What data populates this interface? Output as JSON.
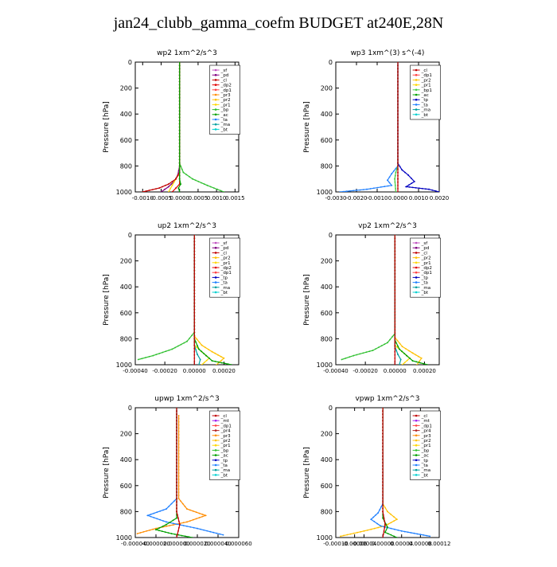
{
  "figure_title": "jan24_clubb_gamma_coefm  BUDGET at240E,28N",
  "colors": {
    "sf": "#c050c0",
    "pd": "#800080",
    "cl": "#c00000",
    "dp2": "#e00000",
    "dp1": "#ff4040",
    "pr3": "#ff8c00",
    "pr2": "#ffc000",
    "pr1": "#ffd700",
    "bp": "#30c030",
    "ac": "#00a000",
    "tp": "#0000c0",
    "ta": "#2080ff",
    "ma": "#00a0a0",
    "bt": "#00d0d0",
    "mt": "#a020f0",
    "pr4": "#b22222",
    "bp1": "#44cc44"
  },
  "chart_data": [
    {
      "type": "line",
      "title": "wp2   1xm^2/s^3",
      "ylabel": "Pressure [hPa]",
      "ylim": [
        1000,
        0
      ],
      "xlim": [
        -0.0012,
        0.0016
      ],
      "xticks": [
        -0.001,
        -0.0005,
        0.0,
        0.0005,
        0.001,
        0.0015
      ],
      "xtick_labels": [
        "-0.0010",
        "-0.0005",
        "0.0000",
        "0.0005",
        "0.0010",
        "0.0015"
      ],
      "yticks": [
        0,
        200,
        400,
        600,
        800,
        1000
      ],
      "legend": [
        "_sf",
        "_pd",
        "_cl",
        "_dp2",
        "_dp1",
        "_pr3",
        "_pr2",
        "_pr1",
        "_bp",
        "_ac",
        "_ta",
        "_ma",
        "_bt"
      ],
      "series": [
        {
          "key": "bp",
          "x": [
            0,
            0,
            0.0001,
            0.00035,
            0.00075,
            0.0012
          ],
          "y": [
            0,
            780,
            850,
            900,
            950,
            1000
          ]
        },
        {
          "key": "pd",
          "x": [
            0,
            0,
            -5e-05,
            -0.00015,
            -0.0003,
            -0.0005
          ],
          "y": [
            0,
            800,
            870,
            920,
            960,
            1000
          ]
        },
        {
          "key": "pr1",
          "x": [
            0,
            0,
            -0.0001,
            -0.0002,
            -0.0003
          ],
          "y": [
            0,
            850,
            900,
            950,
            1000
          ]
        },
        {
          "key": "cl",
          "x": [
            0,
            0,
            -0.0001,
            -0.0003,
            -0.00055,
            -0.001
          ],
          "y": [
            0,
            850,
            900,
            940,
            970,
            1000
          ]
        },
        {
          "key": "dp2",
          "x": [
            0,
            0,
            0,
            -0.0001,
            -0.0002
          ],
          "y": [
            0,
            900,
            940,
            970,
            1000
          ]
        },
        {
          "key": "ac",
          "x": [
            0,
            0,
            3e-05,
            -3e-05,
            0
          ],
          "y": [
            0,
            900,
            940,
            970,
            1000
          ]
        }
      ]
    },
    {
      "type": "line",
      "title": "wp3   1xm^(3) s^(-4)",
      "ylabel": "Pressure [hPa]",
      "ylim": [
        1000,
        0
      ],
      "xlim": [
        -0.003,
        0.002
      ],
      "xticks": [
        -0.003,
        -0.002,
        -0.001,
        0.0,
        0.001,
        0.002
      ],
      "xtick_labels": [
        "-0.0030",
        "-0.0020",
        "-0.0010",
        "0.0000",
        "0.0010",
        "0.0020"
      ],
      "yticks": [
        0,
        200,
        400,
        600,
        800,
        1000
      ],
      "legend": [
        "_cl",
        "_dp1",
        "_pr2",
        "_pr1",
        "_bp1",
        "_ac",
        "_tp",
        "_ta",
        "_ma",
        "_bt"
      ],
      "series": [
        {
          "key": "tp",
          "x": [
            0,
            0,
            0.0002,
            0.0005,
            0.0008,
            0.0004,
            0.0015,
            0.002
          ],
          "y": [
            0,
            780,
            830,
            870,
            920,
            960,
            980,
            1000
          ]
        },
        {
          "key": "ta",
          "x": [
            0,
            0,
            -0.0003,
            -0.0005,
            -0.0003,
            -0.0015,
            -0.0028
          ],
          "y": [
            0,
            800,
            860,
            910,
            950,
            980,
            1000
          ]
        },
        {
          "key": "bp1",
          "x": [
            0,
            0,
            -0.0001,
            -0.00015,
            -0.0001
          ],
          "y": [
            0,
            800,
            850,
            900,
            1000
          ]
        },
        {
          "key": "cl",
          "x": [
            0,
            0,
            0,
            0
          ],
          "y": [
            0,
            500,
            900,
            1000
          ]
        }
      ]
    },
    {
      "type": "line",
      "title": "up2   1xm^2/s^3",
      "ylabel": "Pressure [hPa]",
      "ylim": [
        1000,
        0
      ],
      "xlim": [
        -0.0004,
        0.0003
      ],
      "xticks": [
        -0.0004,
        -0.0002,
        0.0,
        0.0002
      ],
      "xtick_labels": [
        "-0.00040",
        "-0.00020",
        "0.00000",
        "0.00020"
      ],
      "yticks": [
        0,
        200,
        400,
        600,
        800,
        1000
      ],
      "legend": [
        "_sf",
        "_pd",
        "_cl",
        "_pr2",
        "_pr1",
        "_dp2",
        "_dp1",
        "_tp",
        "_ta",
        "_ma",
        "_bt"
      ],
      "series": [
        {
          "key": "bp",
          "x": [
            0,
            0,
            -5e-05,
            -0.00015,
            -0.00028,
            -0.00038
          ],
          "y": [
            0,
            750,
            820,
            880,
            930,
            960
          ]
        },
        {
          "key": "pr2",
          "x": [
            0,
            0,
            5e-05,
            0.00012,
            0.0002,
            0.00015
          ],
          "y": [
            0,
            780,
            850,
            900,
            950,
            1000
          ]
        },
        {
          "key": "pr1",
          "x": [
            0,
            0,
            5e-05,
            0.0001,
            5e-05
          ],
          "y": [
            0,
            850,
            900,
            950,
            1000
          ]
        },
        {
          "key": "ac",
          "x": [
            0,
            0,
            3e-05,
            8e-05,
            0.00012,
            0.00025
          ],
          "y": [
            0,
            800,
            880,
            930,
            970,
            1000
          ]
        },
        {
          "key": "ma",
          "x": [
            0,
            0,
            2e-05,
            4e-05,
            3e-05
          ],
          "y": [
            0,
            850,
            920,
            960,
            1000
          ]
        },
        {
          "key": "cl",
          "x": [
            0,
            0,
            0
          ],
          "y": [
            0,
            500,
            1000
          ]
        }
      ]
    },
    {
      "type": "line",
      "title": "vp2   1xm^2/s^3",
      "ylabel": "Pressure [hPa]",
      "ylim": [
        1000,
        0
      ],
      "xlim": [
        -0.0004,
        0.0003
      ],
      "xticks": [
        -0.0004,
        -0.0002,
        0.0,
        0.0002
      ],
      "xtick_labels": [
        "-0.00040",
        "-0.00020",
        "0.00000",
        "0.00020"
      ],
      "yticks": [
        0,
        200,
        400,
        600,
        800,
        1000
      ],
      "legend": [
        "_sf",
        "_pd",
        "_cl",
        "_pr2",
        "_pr1",
        "_dp2",
        "_dp1",
        "_tp",
        "_ta",
        "_ma",
        "_bt"
      ],
      "series": [
        {
          "key": "bp",
          "x": [
            0,
            0,
            -5e-05,
            -0.00015,
            -0.00028,
            -0.00036
          ],
          "y": [
            0,
            760,
            830,
            890,
            930,
            960
          ]
        },
        {
          "key": "pr2",
          "x": [
            0,
            0,
            5e-05,
            0.00012,
            0.00018,
            0.00015
          ],
          "y": [
            0,
            790,
            860,
            910,
            950,
            1000
          ]
        },
        {
          "key": "pr1",
          "x": [
            0,
            0,
            5e-05,
            0.0001,
            5e-05
          ],
          "y": [
            0,
            850,
            900,
            950,
            1000
          ]
        },
        {
          "key": "ac",
          "x": [
            0,
            0,
            3e-05,
            8e-05,
            0.00012,
            0.00022
          ],
          "y": [
            0,
            810,
            880,
            930,
            970,
            1000
          ]
        },
        {
          "key": "ma",
          "x": [
            0,
            0,
            2e-05,
            4e-05,
            3e-05
          ],
          "y": [
            0,
            860,
            920,
            960,
            1000
          ]
        },
        {
          "key": "cl",
          "x": [
            0,
            0,
            0
          ],
          "y": [
            0,
            500,
            1000
          ]
        }
      ]
    },
    {
      "type": "line",
      "title": "upwp   1xm^2/s^3",
      "ylabel": "Pressure [hPa]",
      "ylim": [
        1000,
        0
      ],
      "xlim": [
        -4e-05,
        6e-05
      ],
      "xticks": [
        -4e-05,
        -2e-05,
        0.0,
        2e-05,
        4e-05,
        6e-05
      ],
      "xtick_labels": [
        "-0.000040",
        "-0.000020",
        "0.000000",
        "0.000020",
        "0.000040",
        "0.000060"
      ],
      "yticks": [
        0,
        200,
        400,
        600,
        800,
        1000
      ],
      "legend": [
        "_cl",
        "_mt",
        "_dp1",
        "_pr4",
        "_pr3",
        "_pr2",
        "_pr1",
        "_bp",
        "_ac",
        "_tp",
        "_ta",
        "_ma",
        "_bt"
      ],
      "series": [
        {
          "key": "pr3",
          "x": [
            2e-06,
            2e-06,
            1e-05,
            2.8e-05,
            1e-05,
            -2e-05,
            -3.8e-05
          ],
          "y": [
            60,
            700,
            780,
            830,
            880,
            930,
            970
          ]
        },
        {
          "key": "ta",
          "x": [
            0,
            0,
            -1e-05,
            -2.8e-05,
            -1e-05,
            2e-05,
            4.5e-05
          ],
          "y": [
            0,
            700,
            780,
            830,
            880,
            930,
            980
          ]
        },
        {
          "key": "ac",
          "x": [
            0,
            0,
            -1e-05,
            -2e-05,
            -5e-06,
            1.5e-05
          ],
          "y": [
            0,
            850,
            900,
            940,
            970,
            1000
          ]
        },
        {
          "key": "cl",
          "x": [
            0,
            0,
            3e-06,
            0
          ],
          "y": [
            0,
            800,
            900,
            1000
          ]
        }
      ]
    },
    {
      "type": "line",
      "title": "vpwp   1xm^2/s^3",
      "ylabel": "Pressure [hPa]",
      "ylim": [
        1000,
        0
      ],
      "xlim": [
        -0.0001,
        0.00012
      ],
      "xticks": [
        -0.0001,
        -6e-05,
        -4e-05,
        0.0,
        4e-05,
        8e-05,
        0.00012
      ],
      "xtick_labels": [
        "-0.00010",
        "-0.00006",
        "-0.00004",
        "0.00000",
        "0.00004",
        "0.00008",
        "0.00012"
      ],
      "yticks": [
        0,
        200,
        400,
        600,
        800,
        1000
      ],
      "legend": [
        "_cl",
        "_mt",
        "_dp1",
        "_pr4",
        "_pr3",
        "_pr2",
        "_pr1",
        "_bp",
        "_ac",
        "_tp",
        "_ta",
        "_ma",
        "_bt"
      ],
      "series": [
        {
          "key": "pr2",
          "x": [
            0,
            0,
            1e-05,
            3e-05,
            5e-06,
            -4e-05,
            -9e-05
          ],
          "y": [
            0,
            740,
            800,
            860,
            910,
            950,
            990
          ]
        },
        {
          "key": "ta",
          "x": [
            0,
            0,
            -1e-05,
            -2.5e-05,
            -5e-06,
            4e-05,
            0.0001
          ],
          "y": [
            0,
            740,
            810,
            860,
            910,
            950,
            990
          ]
        },
        {
          "key": "ac",
          "x": [
            0,
            0,
            1e-05,
            5e-06,
            3e-05
          ],
          "y": [
            0,
            850,
            920,
            960,
            1000
          ]
        },
        {
          "key": "cl",
          "x": [
            0,
            0,
            5e-06,
            0
          ],
          "y": [
            0,
            800,
            900,
            1000
          ]
        }
      ]
    }
  ]
}
